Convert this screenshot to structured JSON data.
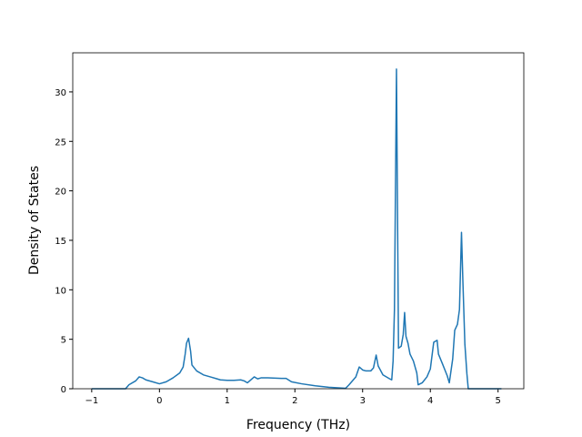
{
  "chart_data": {
    "type": "line",
    "xlabel": "Frequency (THz)",
    "ylabel": "Density of States",
    "x": [
      -1,
      -0.5,
      -0.45,
      -0.35,
      -0.3,
      -0.25,
      -0.2,
      -0.1,
      0,
      0.1,
      0.2,
      0.3,
      0.35,
      0.38,
      0.4,
      0.43,
      0.46,
      0.48,
      0.55,
      0.65,
      0.75,
      0.85,
      0.9,
      1.0,
      1.1,
      1.2,
      1.25,
      1.3,
      1.35,
      1.4,
      1.45,
      1.5,
      1.6,
      1.8,
      1.87,
      1.95,
      2.1,
      2.3,
      2.5,
      2.75,
      2.8,
      2.9,
      2.95,
      3.0,
      3.05,
      3.12,
      3.16,
      3.2,
      3.23,
      3.3,
      3.4,
      3.43,
      3.45,
      3.47,
      3.5,
      3.53,
      3.57,
      3.6,
      3.62,
      3.64,
      3.67,
      3.7,
      3.75,
      3.8,
      3.82,
      3.88,
      3.95,
      4.0,
      4.05,
      4.1,
      4.12,
      4.18,
      4.25,
      4.28,
      4.33,
      4.36,
      4.4,
      4.43,
      4.46,
      4.48,
      4.51,
      4.54,
      4.56,
      5.05
    ],
    "series": [
      {
        "color": "#1f77b4",
        "values": [
          0,
          0,
          0.4,
          0.8,
          1.2,
          1.1,
          0.9,
          0.7,
          0.5,
          0.7,
          1.1,
          1.6,
          2.2,
          3.5,
          4.6,
          5.1,
          3.8,
          2.4,
          1.8,
          1.4,
          1.2,
          1.0,
          0.9,
          0.85,
          0.85,
          0.9,
          0.8,
          0.6,
          0.9,
          1.2,
          1.0,
          1.1,
          1.1,
          1.05,
          1.05,
          0.7,
          0.5,
          0.3,
          0.15,
          0.05,
          0.4,
          1.2,
          2.2,
          1.9,
          1.8,
          1.8,
          2.1,
          3.4,
          2.3,
          1.4,
          1.0,
          0.9,
          2.8,
          8,
          32.3,
          4.1,
          4.3,
          5.5,
          7.7,
          5.3,
          4.6,
          3.5,
          2.8,
          1.6,
          0.4,
          0.6,
          1.2,
          2.0,
          4.7,
          4.9,
          3.5,
          2.5,
          1.3,
          0.6,
          3.0,
          5.9,
          6.5,
          8,
          15.8,
          11,
          4.5,
          1.5,
          0,
          0
        ]
      }
    ],
    "xlim": [
      -1.28,
      5.38
    ],
    "ylim": [
      0,
      33.95
    ],
    "xticks": [
      {
        "value": -1,
        "label": "−1"
      },
      0,
      1,
      2,
      3,
      4,
      5
    ],
    "yticks": [
      0,
      5,
      10,
      15,
      20,
      25,
      30
    ]
  }
}
